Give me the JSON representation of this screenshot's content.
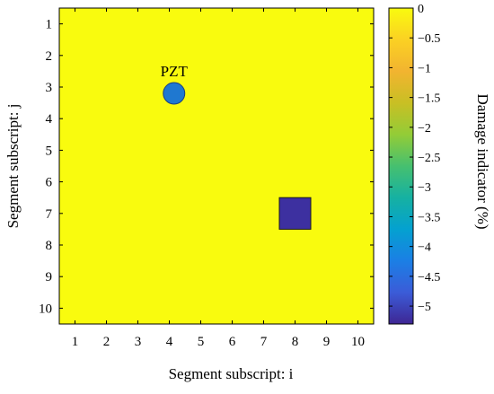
{
  "chart_data": {
    "type": "heatmap",
    "xlabel": "Segment subscript: i",
    "ylabel": "Segment subscript: j",
    "colorbar_label": "Damage indicator (%)",
    "x_ticks": [
      "1",
      "2",
      "3",
      "4",
      "5",
      "6",
      "7",
      "8",
      "9",
      "10"
    ],
    "y_ticks": [
      "1",
      "2",
      "3",
      "4",
      "5",
      "6",
      "7",
      "8",
      "9",
      "10"
    ],
    "xlim": [
      0.5,
      10.5
    ],
    "ylim": [
      0.5,
      10.5
    ],
    "y_direction": "top-to-bottom",
    "background_value": 0,
    "cells": [
      {
        "i": 8,
        "j": 7,
        "value": -5.2
      }
    ],
    "annotations": [
      {
        "label": "PZT",
        "i": 4.15,
        "j": 3.2,
        "marker": "circle",
        "color": "#1f78d0"
      }
    ],
    "colorbar": {
      "min": -5.3,
      "max": 0,
      "ticks": [
        0,
        -0.5,
        -1,
        -1.5,
        -2,
        -2.5,
        -3,
        -3.5,
        -4,
        -4.5,
        -5
      ],
      "tick_labels": [
        "0",
        "−0.5",
        "−1",
        "−1.5",
        "−2",
        "−2.5",
        "−3",
        "−3.5",
        "−4",
        "−4.5",
        "−5"
      ],
      "colormap": "parula",
      "stops": [
        {
          "at": 0.0,
          "color": "#f9fb0e"
        },
        {
          "at": 0.1,
          "color": "#fbd123"
        },
        {
          "at": 0.2,
          "color": "#f2b430"
        },
        {
          "at": 0.3,
          "color": "#c9bf24"
        },
        {
          "at": 0.4,
          "color": "#93cc37"
        },
        {
          "at": 0.5,
          "color": "#46c06f"
        },
        {
          "at": 0.6,
          "color": "#16b1a2"
        },
        {
          "at": 0.7,
          "color": "#04a1d0"
        },
        {
          "at": 0.8,
          "color": "#1b7fe5"
        },
        {
          "at": 0.9,
          "color": "#3b5cd8"
        },
        {
          "at": 1.0,
          "color": "#3e2693"
        }
      ]
    }
  }
}
